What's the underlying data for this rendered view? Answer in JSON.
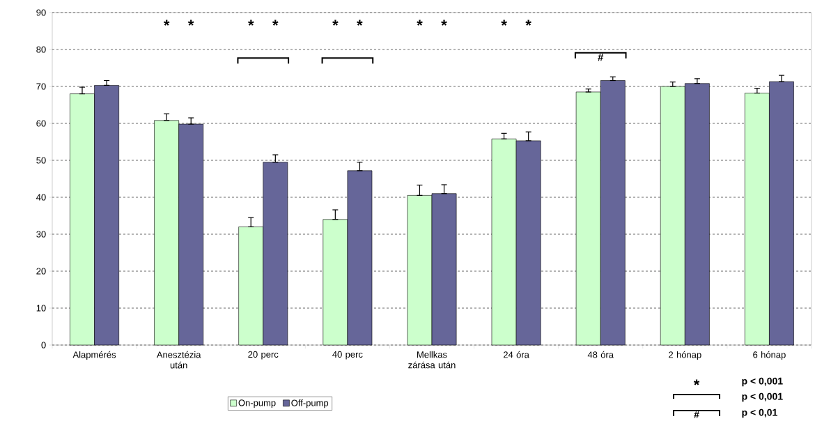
{
  "chart_data": {
    "type": "bar",
    "categories": [
      "Alapmérés",
      "Anesztézia után",
      "20 perc",
      "40 perc",
      "Mellkas zárása után",
      "24 óra",
      "48 óra",
      "2 hónap",
      "6 hónap"
    ],
    "series": [
      {
        "name": "On-pump",
        "color": "#ccffcc",
        "values": [
          68,
          60.8,
          32,
          34,
          40.5,
          55.8,
          68.5,
          70,
          68.2
        ],
        "errors": [
          [
            68,
            69.8
          ],
          [
            60.8,
            62.6
          ],
          [
            32,
            34.5
          ],
          [
            34,
            36.6
          ],
          [
            40.5,
            43.3
          ],
          [
            55.8,
            57.3
          ],
          [
            68.5,
            69.3
          ],
          [
            70,
            71.2
          ],
          [
            68.2,
            69.5
          ]
        ]
      },
      {
        "name": "Off-pump",
        "color": "#666699",
        "values": [
          70.3,
          59.8,
          49.5,
          47.2,
          41,
          55.3,
          71.6,
          70.8,
          71.3
        ],
        "errors": [
          [
            70.3,
            71.6
          ],
          [
            59.8,
            61.5
          ],
          [
            49.5,
            51.5
          ],
          [
            47.2,
            49.5
          ],
          [
            41,
            43.4
          ],
          [
            55.3,
            57.7
          ],
          [
            71.6,
            72.6
          ],
          [
            70.8,
            72.1
          ],
          [
            71.3,
            73
          ]
        ]
      }
    ],
    "ylim": [
      0,
      90
    ],
    "yticks": [
      0,
      10,
      20,
      30,
      40,
      50,
      60,
      70,
      80,
      90
    ],
    "grid": "y",
    "legend": "bottom",
    "annotations": [
      "* *",
      "* *",
      "* *",
      "* *",
      "* *",
      "#",
      "*",
      "p < 0,001",
      "p < 0,001",
      "#",
      "p < 0,01"
    ]
  }
}
